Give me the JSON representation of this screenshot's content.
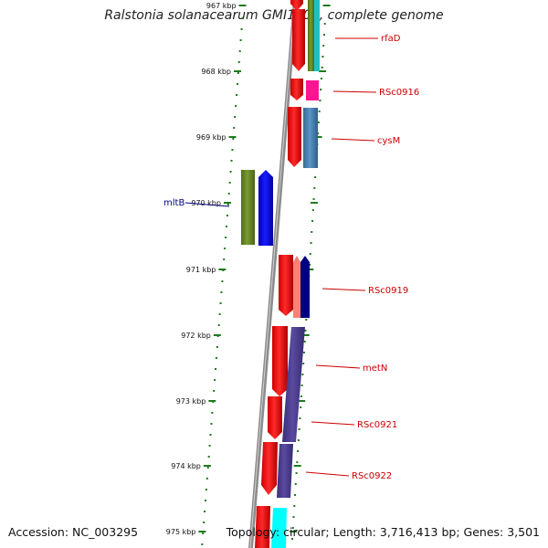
{
  "title": "Ralstonia solanacearum GMI1000, complete genome",
  "footer": {
    "accession": "Accession: NC_003295",
    "info": "Topology: circular; Length: 3,716,413 bp; Genes: 3,501"
  },
  "scale_labels": [
    "967 kbp",
    "968 kbp",
    "969 kbp",
    "970 kbp",
    "971 kbp",
    "972 kbp",
    "973 kbp",
    "974 kbp",
    "975 kbp"
  ],
  "gene_labels": [
    {
      "name": "mltB",
      "color": "#000080"
    },
    {
      "name": "rfaD",
      "color": "#cc0000"
    },
    {
      "name": "RSc0916",
      "color": "#cc0000"
    },
    {
      "name": "cysM",
      "color": "#cc0000"
    },
    {
      "name": "RSc0919",
      "color": "#cc0000"
    },
    {
      "name": "metN",
      "color": "#cc0000"
    },
    {
      "name": "RSc0921",
      "color": "#cc0000"
    },
    {
      "name": "RSc0922",
      "color": "#cc0000"
    }
  ],
  "colors": {
    "red": "#ff0000",
    "blue": "#0000ff",
    "olive": "#6b8e23",
    "teal": "#20c0c0",
    "magenta": "#ff1493",
    "steel_blue": "#4682b4",
    "salmon": "#fa8072",
    "navy": "#000080",
    "slate_blue": "#483d8b",
    "cyan": "#00ffff",
    "tick_green": "#1f7a1f",
    "backbone": "#808080"
  }
}
